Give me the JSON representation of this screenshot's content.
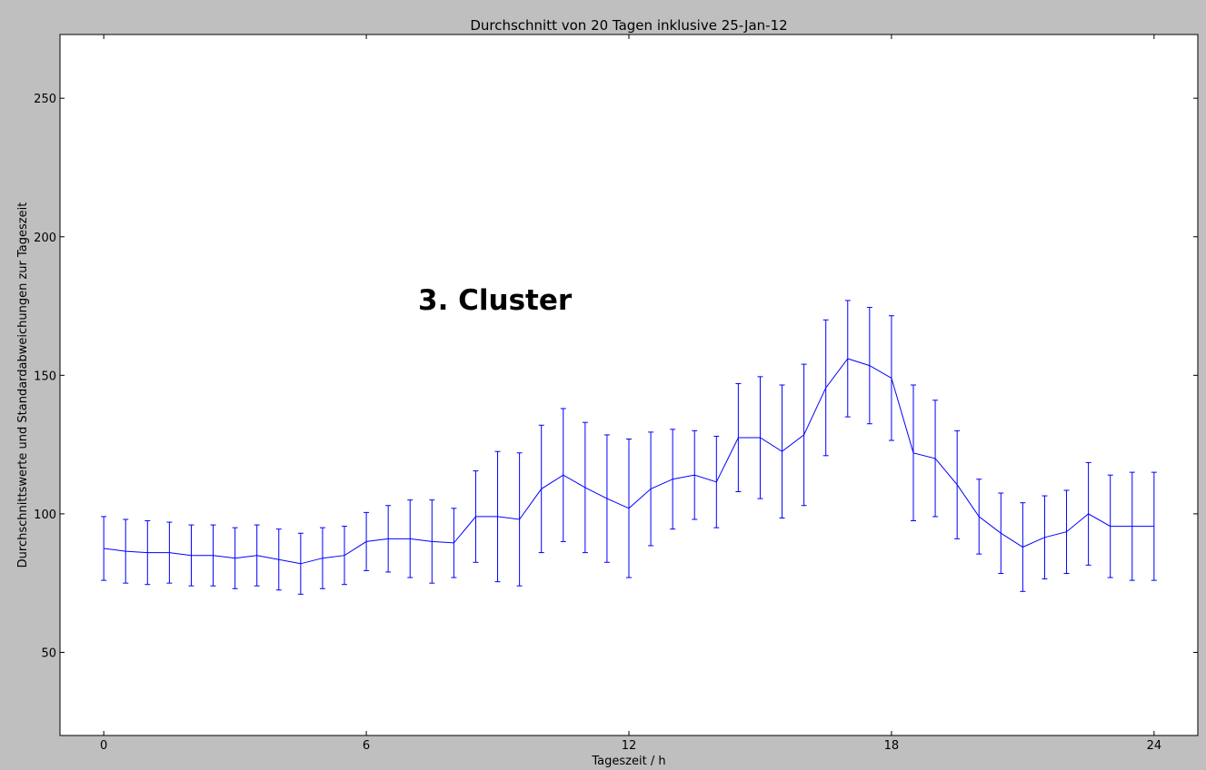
{
  "chart_data": {
    "type": "line",
    "title": "Durchschnitt von 20 Tagen inklusive 25-Jan-12",
    "xlabel": "Tageszeit / h",
    "ylabel": "Durchschnittswerte und Standardabweichungen zur Tageszeit",
    "annotation": "3. Cluster",
    "xlim": [
      -1,
      25
    ],
    "ylim": [
      20,
      273
    ],
    "xticks": [
      0,
      6,
      12,
      18,
      24
    ],
    "yticks": [
      50,
      100,
      150,
      200,
      250
    ],
    "grid": false,
    "line_color": "#0000ff",
    "x": [
      0,
      0.5,
      1,
      1.5,
      2,
      2.5,
      3,
      3.5,
      4,
      4.5,
      5,
      5.5,
      6,
      6.5,
      7,
      7.5,
      8,
      8.5,
      9,
      9.5,
      10,
      10.5,
      11,
      11.5,
      12,
      12.5,
      13,
      13.5,
      14,
      14.5,
      15,
      15.5,
      16,
      16.5,
      17,
      17.5,
      18,
      18.5,
      19,
      19.5,
      20,
      20.5,
      21,
      21.5,
      22,
      22.5,
      23,
      23.5,
      24
    ],
    "series": [
      {
        "values": [
          87.5,
          86.5,
          86,
          86,
          85,
          85,
          84,
          85,
          83.5,
          82,
          84,
          85,
          90,
          91,
          91,
          90,
          89.5,
          99,
          99,
          98,
          109,
          114,
          109.5,
          105.5,
          102,
          109,
          112.5,
          114,
          111.5,
          127.5,
          127.5,
          122.5,
          128.5,
          145.5,
          156,
          153.5,
          149,
          122,
          120,
          110.5,
          99,
          93,
          88,
          91.5,
          93.5,
          100,
          95.5,
          95.5,
          95.5
        ],
        "error": [
          11.5,
          11.5,
          11.5,
          11,
          11,
          11,
          11,
          11,
          11,
          11,
          11,
          10.5,
          10.5,
          12,
          14,
          15,
          12.5,
          16.5,
          23.5,
          24,
          23,
          24,
          23.5,
          23,
          25,
          20.5,
          18,
          16,
          16.5,
          19.5,
          22,
          24,
          25.5,
          24.5,
          21,
          21,
          22.5,
          24.5,
          21,
          19.5,
          13.5,
          14.5,
          16,
          15,
          15,
          18.5,
          18.5,
          19.5,
          19.5
        ]
      }
    ]
  }
}
